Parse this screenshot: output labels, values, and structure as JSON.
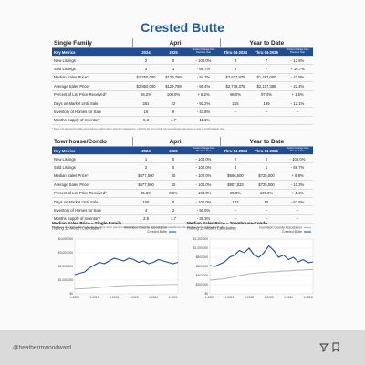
{
  "title": "Crested Butte",
  "tables": [
    {
      "section": "Single Family",
      "groups": [
        "April",
        "Year to Date"
      ],
      "headers": [
        "Key Metrics",
        "2024",
        "2025",
        "Percent Change from Previous Year",
        "Thru 04-2024",
        "Thru 04-2025",
        "Percent Change from Previous Year"
      ],
      "rows": [
        [
          "New Listings",
          "2",
          "0",
          "- 100.0%",
          "8",
          "7",
          "- 12.5%"
        ],
        [
          "Sold Listings",
          "3",
          "1",
          "- 66.7%",
          "6",
          "7",
          "+ 16.7%"
        ],
        [
          "Median Sales Price*",
          "$2,250,000",
          "$129,789",
          "- 94.2%",
          "$2,577,975",
          "$1,497,000",
          "- 41.9%"
        ],
        [
          "Average Sales Price*",
          "$2,850,000",
          "$129,789",
          "- 95.4%",
          "$2,778,375",
          "$2,107,396",
          "- 22.4%"
        ],
        [
          "Percent of List Price Received*",
          "94.2%",
          "100.0%",
          "+ 6.2%",
          "96.0%",
          "97.4%",
          "+ 1.5%"
        ],
        [
          "Days on Market Until Sale",
          "261",
          "22",
          "- 92.2%",
          "215",
          "189",
          "- 12.1%"
        ],
        [
          "Inventory of Homes for Sale",
          "16",
          "9",
          "- 43.8%",
          "--",
          "--",
          "--"
        ],
        [
          "Months Supply of Inventory",
          "5.3",
          "4.7",
          "- 11.3%",
          "--",
          "--",
          "--"
        ]
      ],
      "footnote": "* Does not account for sale concessions and/or down payment assistance. | Activity for one month can sometimes look extreme due to small sample size."
    },
    {
      "section": "Townhouse/Condo",
      "groups": [
        "April",
        "Year to Date"
      ],
      "headers": [
        "Key Metrics",
        "2024",
        "2025",
        "Percent Change from Previous Year",
        "Thru 04-2024",
        "Thru 04-2025",
        "Percent Change from Previous Year"
      ],
      "rows": [
        [
          "New Listings",
          "1",
          "0",
          "- 100.0%",
          "2",
          "0",
          "- 100.0%"
        ],
        [
          "Sold Listings",
          "2",
          "0",
          "- 100.0%",
          "3",
          "1",
          "- 66.7%"
        ],
        [
          "Median Sales Price*",
          "$677,500",
          "$0",
          "- 100.0%",
          "$666,500",
          "$725,000",
          "+ 8.8%"
        ],
        [
          "Average Sales Price*",
          "$677,500",
          "$0",
          "- 100.0%",
          "$807,833",
          "$725,000",
          "- 10.3%"
        ],
        [
          "Percent of List Price Received*",
          "95.8%",
          "0.0%",
          "- 100.0%",
          "95.8%",
          "100.0%",
          "+ 4.4%"
        ],
        [
          "Days on Market Until Sale",
          "158",
          "0",
          "- 100.0%",
          "147",
          "55",
          "- 62.6%"
        ],
        [
          "Inventory of Homes for Sale",
          "4",
          "2",
          "- 50.0%",
          "--",
          "--",
          "--"
        ],
        [
          "Months Supply of Inventory",
          "2.8",
          "1.7",
          "- 39.3%",
          "--",
          "--",
          "--"
        ]
      ],
      "footnote": "* Does not account for sale concessions and/or down payment assistance. | Activity for one month can sometimes look extreme due to small sample size."
    }
  ],
  "chart_data": [
    {
      "type": "line",
      "title": "Median Sales Price – Single Family",
      "subtitle": "Rolling 12-Month Calculation",
      "categories": [
        "1-2020",
        null,
        null,
        null,
        "1-2021",
        null,
        null,
        null,
        "1-2022",
        null,
        null,
        null,
        "1-2023",
        null,
        null,
        null,
        "1-2024",
        null,
        null,
        null,
        "1-2025",
        null
      ],
      "series": [
        {
          "name": "Gunnison County Association",
          "color": "#b3b3b3",
          "values": [
            350000,
            360000,
            380000,
            400000,
            430000,
            460000,
            500000,
            530000,
            560000,
            580000,
            600000,
            610000,
            620000,
            630000,
            630000,
            640000,
            650000,
            660000,
            660000,
            670000,
            680000,
            680000
          ]
        },
        {
          "name": "Crested Butte",
          "color": "#1f4e99",
          "values": [
            1400000,
            1500000,
            1600000,
            1900000,
            2100000,
            2300000,
            2200000,
            2400000,
            2600000,
            2500000,
            2400000,
            2600000,
            2500000,
            2300000,
            2400000,
            2200000,
            2300000,
            2500000,
            2400000,
            2300000,
            2200000,
            2300000
          ]
        }
      ],
      "ylim": [
        0,
        4000000
      ],
      "yticks": [
        {
          "value": 0,
          "label": "$0"
        },
        {
          "value": 1000000,
          "label": "$1,000,000"
        },
        {
          "value": 2000000,
          "label": "$2,000,000"
        },
        {
          "value": 3000000,
          "label": "$3,000,000"
        },
        {
          "value": 4000000,
          "label": "$4,000,000"
        }
      ]
    },
    {
      "type": "line",
      "title": "Median Sales Price – Townhouse-Condo",
      "subtitle": "Rolling 12-Month Calculation",
      "categories": [
        "1-2020",
        null,
        null,
        null,
        "1-2021",
        null,
        null,
        null,
        "1-2022",
        null,
        null,
        null,
        "1-2023",
        null,
        null,
        null,
        "1-2024",
        null,
        null,
        null,
        "1-2025",
        null
      ],
      "series": [
        {
          "name": "Gunnison County Association",
          "color": "#b3b3b3",
          "values": [
            300000,
            310000,
            320000,
            330000,
            350000,
            370000,
            400000,
            420000,
            440000,
            450000,
            460000,
            470000,
            480000,
            480000,
            490000,
            500000,
            500000,
            510000,
            520000,
            520000,
            530000,
            530000
          ]
        },
        {
          "name": "Crested Butte",
          "color": "#1f4e99",
          "values": [
            620000,
            600000,
            650000,
            700000,
            800000,
            850000,
            950000,
            900000,
            1000000,
            850000,
            800000,
            900000,
            1050000,
            950000,
            800000,
            850000,
            750000,
            800000,
            700000,
            750000,
            680000,
            700000
          ]
        }
      ],
      "ylim": [
        0,
        1200000
      ],
      "yticks": [
        {
          "value": 0,
          "label": "$0"
        },
        {
          "value": 200000,
          "label": "$200,000"
        },
        {
          "value": 400000,
          "label": "$400,000"
        },
        {
          "value": 600000,
          "label": "$600,000"
        },
        {
          "value": 800000,
          "label": "$800,000"
        },
        {
          "value": 1000000,
          "label": "$1,000,000"
        },
        {
          "value": 1200000,
          "label": "$1,200,000"
        }
      ]
    }
  ],
  "footer": {
    "handle": "@heatherrnwoodward"
  }
}
